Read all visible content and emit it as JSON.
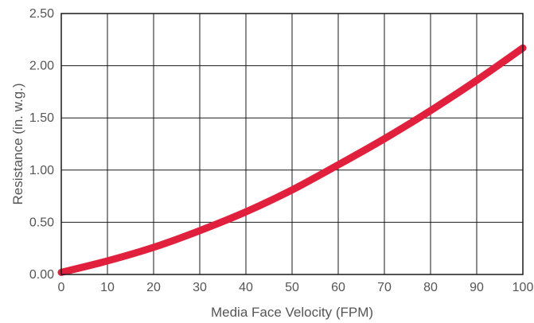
{
  "chart_data": {
    "type": "line",
    "title": "",
    "xlabel": "Media Face Velocity (FPM)",
    "ylabel": "Resistance (in. w.g.)",
    "xlim": [
      0,
      100
    ],
    "ylim": [
      0,
      2.5
    ],
    "grid": true,
    "x_ticks": [
      {
        "value": 0,
        "label": "0"
      },
      {
        "value": 10,
        "label": "10"
      },
      {
        "value": 20,
        "label": "20"
      },
      {
        "value": 30,
        "label": "30"
      },
      {
        "value": 40,
        "label": "40"
      },
      {
        "value": 50,
        "label": "50"
      },
      {
        "value": 60,
        "label": "60"
      },
      {
        "value": 70,
        "label": "70"
      },
      {
        "value": 80,
        "label": "80"
      },
      {
        "value": 90,
        "label": "90"
      },
      {
        "value": 100,
        "label": "100"
      }
    ],
    "y_ticks": [
      {
        "value": 0,
        "label": "0.00"
      },
      {
        "value": 0.5,
        "label": "0.50"
      },
      {
        "value": 1.0,
        "label": "1.00"
      },
      {
        "value": 1.5,
        "label": "1.50"
      },
      {
        "value": 2.0,
        "label": "2.00"
      },
      {
        "value": 2.5,
        "label": "2.50"
      }
    ],
    "series": [
      {
        "color": "#e0203c",
        "x": [
          0,
          10,
          20,
          30,
          40,
          50,
          60,
          70,
          80,
          90,
          100
        ],
        "y": [
          0.02,
          0.13,
          0.26,
          0.42,
          0.6,
          0.81,
          1.05,
          1.3,
          1.57,
          1.86,
          2.17
        ]
      }
    ]
  }
}
